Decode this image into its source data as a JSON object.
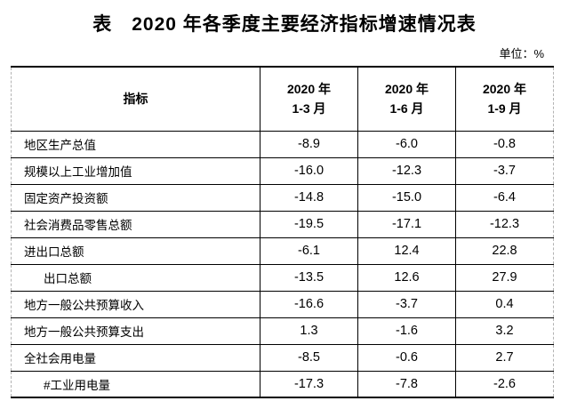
{
  "page": {
    "title": "表　2020 年各季度主要经济指标增速情况表",
    "unit_label": "单位：%"
  },
  "table": {
    "header": {
      "indicator": "指标",
      "periods": [
        {
          "line1": "2020 年",
          "line2": "1-3 月"
        },
        {
          "line1": "2020 年",
          "line2": "1-6 月"
        },
        {
          "line1": "2020 年",
          "line2": "1-9 月"
        }
      ]
    },
    "rows": [
      {
        "label": "地区生产总值",
        "level": 0,
        "values": [
          "-8.9",
          "-6.0",
          "-0.8"
        ]
      },
      {
        "label": "规模以上工业增加值",
        "level": 0,
        "values": [
          "-16.0",
          "-12.3",
          "-3.7"
        ]
      },
      {
        "label": "固定资产投资额",
        "level": 0,
        "values": [
          "-14.8",
          "-15.0",
          "-6.4"
        ]
      },
      {
        "label": "社会消费品零售总额",
        "level": 0,
        "values": [
          "-19.5",
          "-17.1",
          "-12.3"
        ]
      },
      {
        "label": "进出口总额",
        "level": 0,
        "values": [
          "-6.1",
          "12.4",
          "22.8"
        ]
      },
      {
        "label": "出口总额",
        "level": 1,
        "values": [
          "-13.5",
          "12.6",
          "27.9"
        ]
      },
      {
        "label": "地方一般公共预算收入",
        "level": 0,
        "values": [
          "-16.6",
          "-3.7",
          "0.4"
        ]
      },
      {
        "label": "地方一般公共预算支出",
        "level": 0,
        "values": [
          "1.3",
          "-1.6",
          "3.2"
        ]
      },
      {
        "label": "全社会用电量",
        "level": 0,
        "values": [
          "-8.5",
          "-0.6",
          "2.7"
        ]
      },
      {
        "label": "#工业用电量",
        "level": 1,
        "values": [
          "-17.3",
          "-7.8",
          "-2.6"
        ]
      }
    ]
  }
}
